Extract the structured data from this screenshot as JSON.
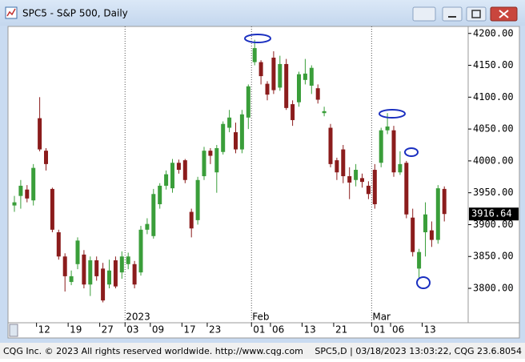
{
  "window": {
    "title": "SPC5 - S&P 500, Daily",
    "footer_left": "CQG Inc. © 2023 All rights reserved worldwide. http://www.cqg.com",
    "footer_right": "SPC5,D | 03/18/2023 13:03:22, CQG 23.6.8054"
  },
  "chart_data": {
    "type": "candlestick",
    "categories": [
      null,
      null,
      null,
      null,
      "12",
      null,
      null,
      null,
      null,
      "19",
      null,
      null,
      null,
      null,
      "27",
      null,
      null,
      null,
      "03",
      null,
      null,
      null,
      "09",
      null,
      null,
      null,
      null,
      "17",
      null,
      null,
      null,
      "23",
      null,
      null,
      null,
      null,
      null,
      null,
      "01",
      null,
      null,
      "06",
      null,
      null,
      null,
      null,
      "13",
      null,
      null,
      null,
      null,
      "21",
      null,
      null,
      null,
      null,
      null,
      "01",
      null,
      null,
      "06",
      null,
      null,
      null,
      null,
      "13",
      null,
      null,
      null
    ],
    "months": [
      null,
      null,
      null,
      null,
      null,
      null,
      null,
      null,
      null,
      null,
      null,
      null,
      null,
      null,
      null,
      null,
      null,
      null,
      "2023",
      null,
      null,
      null,
      null,
      null,
      null,
      null,
      null,
      null,
      null,
      null,
      null,
      null,
      null,
      null,
      null,
      null,
      null,
      null,
      "Feb",
      null,
      null,
      null,
      null,
      null,
      null,
      null,
      null,
      null,
      null,
      null,
      null,
      null,
      null,
      null,
      null,
      null,
      null,
      "Mar",
      null,
      null,
      null,
      null,
      null,
      null,
      null,
      null,
      null,
      null,
      null
    ],
    "open": [
      3930,
      3945,
      3955,
      3938,
      4067,
      4016,
      3956,
      3888,
      3850,
      3810,
      3838,
      3853,
      3806,
      3844,
      3831,
      3806,
      3844,
      3825,
      3838,
      3838,
      3825,
      3892,
      3882,
      3932,
      3961,
      3957,
      3997,
      4001,
      3920,
      3907,
      3976,
      4016,
      3982,
      4014,
      4052,
      4045,
      4018,
      4068,
      4155,
      4155,
      4121,
      4162,
      4115,
      4152,
      4089,
      4092,
      4127,
      4118,
      4114,
      4075,
      4052,
      4001,
      4018,
      3976,
      3970,
      3973,
      3961,
      3986,
      3997,
      4048,
      4048,
      3982,
      3997,
      3911,
      3831,
      3888,
      3891,
      3876,
      3956
    ],
    "high": [
      3945,
      3970,
      3962,
      3995,
      4100,
      4020,
      3958,
      3892,
      3855,
      3828,
      3880,
      3860,
      3850,
      3850,
      3840,
      3845,
      3850,
      3858,
      3856,
      3843,
      3898,
      3910,
      3956,
      3965,
      3985,
      4003,
      4002,
      4003,
      3925,
      3975,
      4022,
      4020,
      4025,
      4062,
      4080,
      4060,
      4080,
      4120,
      4190,
      4158,
      4125,
      4172,
      4165,
      4160,
      4095,
      4140,
      4160,
      4150,
      4120,
      4085,
      4058,
      4005,
      4025,
      3990,
      3995,
      3980,
      3968,
      3995,
      4052,
      4075,
      4055,
      4015,
      4000,
      3925,
      3862,
      3935,
      3905,
      3962,
      3960
    ],
    "low": [
      3920,
      3925,
      3935,
      3930,
      4015,
      3985,
      3888,
      3845,
      3795,
      3805,
      3830,
      3800,
      3788,
      3812,
      3778,
      3800,
      3800,
      3815,
      3830,
      3800,
      3820,
      3885,
      3878,
      3925,
      3955,
      3950,
      3980,
      3965,
      3880,
      3900,
      3970,
      3995,
      3950,
      4010,
      4045,
      4012,
      4012,
      4050,
      4150,
      4120,
      4095,
      4105,
      4110,
      4080,
      4055,
      4085,
      4120,
      4105,
      4090,
      4070,
      3990,
      3970,
      3965,
      3940,
      3960,
      3958,
      3940,
      3925,
      3990,
      4042,
      3975,
      3978,
      3910,
      3850,
      3815,
      3850,
      3865,
      3870,
      3905
    ],
    "close": [
      3935,
      3961,
      3941,
      3989,
      4018,
      3995,
      3892,
      3850,
      3819,
      3819,
      3875,
      3806,
      3844,
      3819,
      3781,
      3828,
      3803,
      3850,
      3850,
      3806,
      3892,
      3901,
      3948,
      3961,
      3979,
      3997,
      3986,
      3970,
      3894,
      3970,
      4016,
      4008,
      4020,
      4058,
      4068,
      4018,
      4073,
      4117,
      4177,
      4133,
      4104,
      4111,
      4152,
      4083,
      4064,
      4136,
      4137,
      4146,
      4096,
      4078,
      3995,
      3982,
      3976,
      3966,
      3986,
      3967,
      3948,
      3932,
      4048,
      4054,
      3982,
      3995,
      3916,
      3857,
      3857,
      3916,
      3876,
      3957,
      3916.64
    ],
    "up_color": "#3a9e3a",
    "down_color": "#8b1c1c",
    "ylim": [
      3746,
      4211
    ],
    "yticks": [
      {
        "value": 3800,
        "label": "3800.00"
      },
      {
        "value": 3850,
        "label": "3850.00"
      },
      {
        "value": 3900,
        "label": "3900.00"
      },
      {
        "value": 3950,
        "label": "3950.00"
      },
      {
        "value": 4000,
        "label": "4000.00"
      },
      {
        "value": 4050,
        "label": "4050.00"
      },
      {
        "value": 4100,
        "label": "4100.00"
      },
      {
        "value": 4150,
        "label": "4150.00"
      },
      {
        "value": 4200,
        "label": "4200.00"
      }
    ],
    "last_price": 3916.64
  }
}
